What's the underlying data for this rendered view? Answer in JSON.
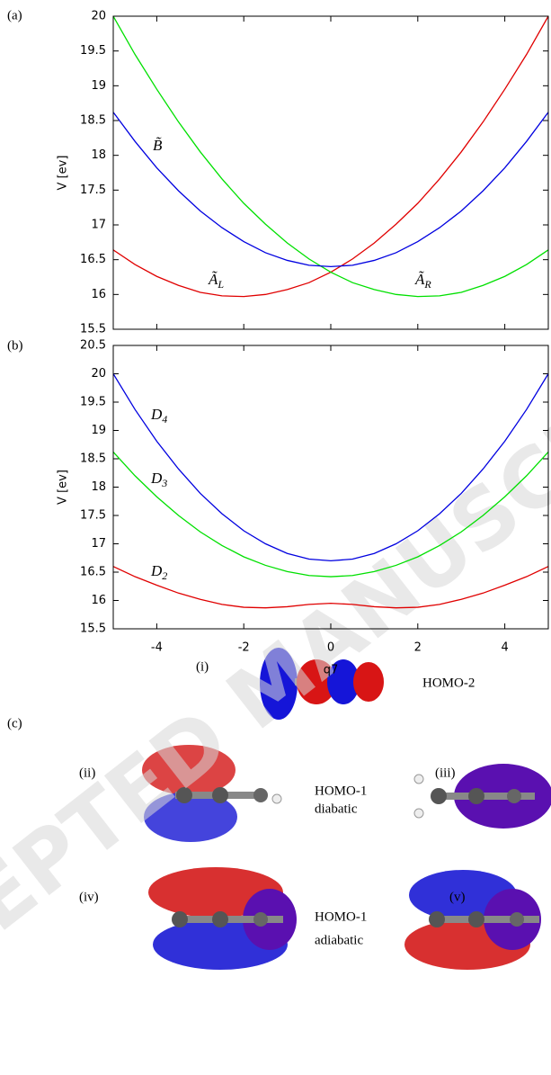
{
  "panel_labels": [
    "(a)",
    "(b)",
    "(c)"
  ],
  "chart_data": [
    {
      "type": "line",
      "ylabel": "V [ev]",
      "xlim": [
        -5,
        5
      ],
      "xticks": [
        -4,
        -2,
        0,
        2,
        4
      ],
      "show_xtick_labels": false,
      "ylim": [
        15.5,
        20
      ],
      "yticks": [
        15.5,
        16,
        16.5,
        17,
        17.5,
        18,
        18.5,
        19,
        19.5,
        20
      ],
      "x": [
        -5,
        -4.5,
        -4,
        -3.5,
        -3,
        -2.5,
        -2,
        -1.5,
        -1,
        -0.5,
        0,
        0.5,
        1,
        1.5,
        2,
        2.5,
        3,
        3.5,
        4,
        4.5,
        5
      ],
      "series": [
        {
          "name": "Ã",
          "subscript": "L",
          "color": "#e00000",
          "values": [
            16.64,
            16.43,
            16.26,
            16.13,
            16.03,
            15.98,
            15.97,
            16.0,
            16.07,
            16.17,
            16.32,
            16.51,
            16.74,
            17.01,
            17.31,
            17.66,
            18.05,
            18.48,
            18.95,
            19.45,
            20.0
          ]
        },
        {
          "name": "Ã",
          "subscript": "R",
          "color": "#00e000",
          "values": [
            20.0,
            19.45,
            18.95,
            18.48,
            18.05,
            17.66,
            17.31,
            17.01,
            16.74,
            16.51,
            16.32,
            16.17,
            16.07,
            16.0,
            15.97,
            15.98,
            16.03,
            16.13,
            16.26,
            16.43,
            16.64
          ]
        },
        {
          "name": "B̃",
          "color": "#0000e0",
          "values": [
            18.62,
            18.2,
            17.82,
            17.49,
            17.2,
            16.96,
            16.76,
            16.6,
            16.49,
            16.42,
            16.4,
            16.42,
            16.49,
            16.6,
            16.76,
            16.96,
            17.2,
            17.49,
            17.82,
            18.2,
            18.62
          ]
        }
      ]
    },
    {
      "type": "line",
      "ylabel": "V [ev]",
      "xlabel": "q7",
      "xlim": [
        -5,
        5
      ],
      "xticks": [
        -4,
        -2,
        0,
        2,
        4
      ],
      "show_xtick_labels": true,
      "ylim": [
        15.5,
        20.5
      ],
      "yticks": [
        15.5,
        16,
        16.5,
        17,
        17.5,
        18,
        18.5,
        19,
        19.5,
        20,
        20.5
      ],
      "x": [
        -5,
        -4.5,
        -4,
        -3.5,
        -3,
        -2.5,
        -2,
        -1.5,
        -1,
        -0.5,
        0,
        0.5,
        1,
        1.5,
        2,
        2.5,
        3,
        3.5,
        4,
        4.5,
        5
      ],
      "series": [
        {
          "name": "D",
          "subscript": "2",
          "color": "#e00000",
          "values": [
            16.6,
            16.42,
            16.27,
            16.13,
            16.02,
            15.93,
            15.88,
            15.87,
            15.89,
            15.93,
            15.95,
            15.93,
            15.89,
            15.87,
            15.88,
            15.93,
            16.02,
            16.13,
            16.27,
            16.42,
            16.6
          ]
        },
        {
          "name": "D",
          "subscript": "3",
          "color": "#00e000",
          "values": [
            18.62,
            18.2,
            17.83,
            17.5,
            17.21,
            16.97,
            16.77,
            16.62,
            16.51,
            16.44,
            16.42,
            16.44,
            16.51,
            16.62,
            16.77,
            16.97,
            17.21,
            17.5,
            17.83,
            18.2,
            18.62
          ]
        },
        {
          "name": "D",
          "subscript": "4",
          "color": "#0000e0",
          "values": [
            20.0,
            19.37,
            18.81,
            18.32,
            17.89,
            17.53,
            17.23,
            17.0,
            16.83,
            16.73,
            16.7,
            16.73,
            16.83,
            17.0,
            17.23,
            17.53,
            17.89,
            18.32,
            18.81,
            19.37,
            20.0
          ]
        }
      ]
    }
  ],
  "orbitals": {
    "labels": [
      "(i)",
      "(ii)",
      "(iii)",
      "(iv)",
      "(v)"
    ],
    "homo2": "HOMO-2",
    "homo1": "HOMO-1",
    "diabatic": "diabatic",
    "adiabatic": "adiabatic"
  },
  "watermark": "ACCEPTED MANUSCRIPT"
}
